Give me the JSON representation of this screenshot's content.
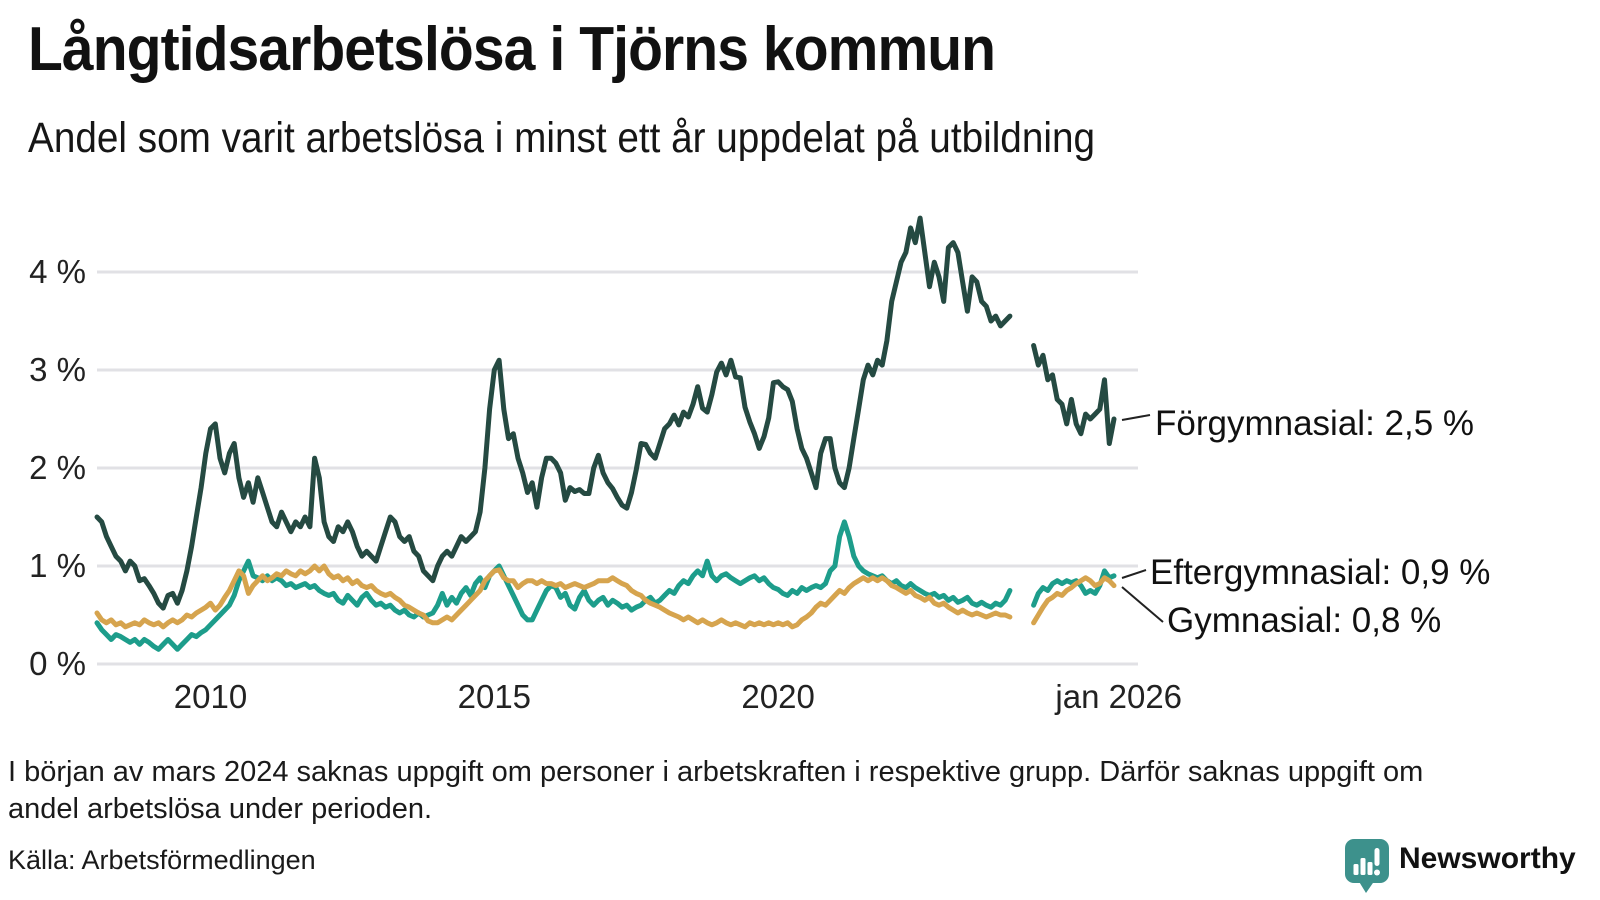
{
  "header": {
    "title": "Långtidsarbetslösa i Tjörns kommun",
    "subtitle": "Andel som varit arbetslösa i minst ett år uppdelat på utbildning"
  },
  "footer": {
    "footnote_line1": "I början av mars 2024 saknas uppgift om personer i arbetskraften i respektive grupp. Därför saknas uppgift om",
    "footnote_line2": "andel arbetslösa under perioden.",
    "source": "Källa: Arbetsförmedlingen",
    "logo_text": "Newsworthy",
    "logo_color": "#2d8a87",
    "logo_icon_color": "#3d918c"
  },
  "chart_data": {
    "type": "line",
    "frequency": "monthly",
    "x_start": "2008-01",
    "x_end": "2025-12",
    "data_gap": "2024-03 to 2024-06 (no data)",
    "grid": "horizontal only",
    "x_ticks": [
      {
        "label": "2010",
        "month_index": 24
      },
      {
        "label": "2015",
        "month_index": 84
      },
      {
        "label": "2020",
        "month_index": 144
      },
      {
        "label": "jan 2026",
        "month_index": 216
      }
    ],
    "y_ticks": [
      {
        "label": "0 %",
        "value": 0
      },
      {
        "label": "1 %",
        "value": 1
      },
      {
        "label": "2 %",
        "value": 2
      },
      {
        "label": "3 %",
        "value": 3
      },
      {
        "label": "4 %",
        "value": 4
      }
    ],
    "ylim": [
      0,
      4.75
    ],
    "series": [
      {
        "name": "Eftergymnasial",
        "end_label": "Eftergymnasial: 0,9 %",
        "end_value": "0,9 %",
        "color": "#1d9d8b",
        "values": [
          0.42,
          0.35,
          0.3,
          0.25,
          0.3,
          0.28,
          0.25,
          0.22,
          0.25,
          0.2,
          0.25,
          0.22,
          0.18,
          0.15,
          0.2,
          0.25,
          0.2,
          0.15,
          0.2,
          0.25,
          0.3,
          0.28,
          0.32,
          0.35,
          0.4,
          0.45,
          0.5,
          0.55,
          0.6,
          0.7,
          0.85,
          0.95,
          1.05,
          0.9,
          0.88,
          0.85,
          0.9,
          0.85,
          0.88,
          0.85,
          0.8,
          0.82,
          0.78,
          0.8,
          0.82,
          0.78,
          0.8,
          0.75,
          0.72,
          0.7,
          0.72,
          0.65,
          0.62,
          0.7,
          0.65,
          0.6,
          0.68,
          0.72,
          0.65,
          0.6,
          0.62,
          0.58,
          0.6,
          0.55,
          0.52,
          0.55,
          0.5,
          0.48,
          0.52,
          0.48,
          0.5,
          0.52,
          0.6,
          0.72,
          0.6,
          0.68,
          0.62,
          0.72,
          0.78,
          0.7,
          0.82,
          0.88,
          0.78,
          0.9,
          0.95,
          1.0,
          0.9,
          0.8,
          0.7,
          0.6,
          0.5,
          0.45,
          0.45,
          0.55,
          0.65,
          0.75,
          0.8,
          0.78,
          0.68,
          0.72,
          0.6,
          0.56,
          0.68,
          0.75,
          0.65,
          0.6,
          0.65,
          0.68,
          0.6,
          0.65,
          0.62,
          0.58,
          0.6,
          0.55,
          0.58,
          0.6,
          0.65,
          0.68,
          0.62,
          0.65,
          0.7,
          0.75,
          0.72,
          0.8,
          0.85,
          0.82,
          0.9,
          0.95,
          0.9,
          1.05,
          0.9,
          0.85,
          0.9,
          0.92,
          0.88,
          0.85,
          0.82,
          0.85,
          0.88,
          0.9,
          0.85,
          0.88,
          0.82,
          0.78,
          0.76,
          0.72,
          0.7,
          0.75,
          0.72,
          0.78,
          0.75,
          0.78,
          0.8,
          0.78,
          0.82,
          0.95,
          1.0,
          1.3,
          1.45,
          1.3,
          1.1,
          1.0,
          0.95,
          0.92,
          0.9,
          0.88,
          0.9,
          0.85,
          0.82,
          0.85,
          0.8,
          0.78,
          0.82,
          0.78,
          0.75,
          0.72,
          0.7,
          0.72,
          0.68,
          0.7,
          0.65,
          0.68,
          0.63,
          0.65,
          0.68,
          0.62,
          0.6,
          0.63,
          0.6,
          0.58,
          0.62,
          0.6,
          0.65,
          0.75,
          null,
          null,
          null,
          null,
          0.6,
          0.72,
          0.78,
          0.75,
          0.82,
          0.85,
          0.82,
          0.85,
          0.83,
          0.85,
          0.8,
          0.72,
          0.75,
          0.72,
          0.8,
          0.95,
          0.88,
          0.9
        ]
      },
      {
        "name": "Gymnasial",
        "end_label": "Gymnasial: 0,8 %",
        "end_value": "0,8 %",
        "color": "#d6a44e",
        "values": [
          0.52,
          0.45,
          0.42,
          0.45,
          0.4,
          0.42,
          0.38,
          0.4,
          0.42,
          0.4,
          0.45,
          0.42,
          0.4,
          0.42,
          0.38,
          0.42,
          0.45,
          0.42,
          0.45,
          0.5,
          0.48,
          0.52,
          0.55,
          0.58,
          0.62,
          0.55,
          0.6,
          0.68,
          0.75,
          0.85,
          0.95,
          0.9,
          0.72,
          0.8,
          0.85,
          0.9,
          0.85,
          0.88,
          0.92,
          0.9,
          0.95,
          0.92,
          0.9,
          0.95,
          0.92,
          0.95,
          1.0,
          0.95,
          1.0,
          0.92,
          0.88,
          0.9,
          0.85,
          0.88,
          0.82,
          0.85,
          0.8,
          0.78,
          0.8,
          0.75,
          0.72,
          0.7,
          0.72,
          0.68,
          0.65,
          0.6,
          0.58,
          0.55,
          0.52,
          0.5,
          0.44,
          0.42,
          0.42,
          0.45,
          0.48,
          0.45,
          0.5,
          0.55,
          0.6,
          0.65,
          0.7,
          0.75,
          0.85,
          0.9,
          0.95,
          0.96,
          0.88,
          0.85,
          0.85,
          0.78,
          0.82,
          0.85,
          0.85,
          0.82,
          0.85,
          0.82,
          0.82,
          0.8,
          0.82,
          0.78,
          0.8,
          0.82,
          0.8,
          0.78,
          0.8,
          0.82,
          0.85,
          0.85,
          0.85,
          0.88,
          0.85,
          0.82,
          0.8,
          0.75,
          0.72,
          0.7,
          0.65,
          0.62,
          0.6,
          0.58,
          0.55,
          0.52,
          0.5,
          0.48,
          0.45,
          0.48,
          0.45,
          0.42,
          0.45,
          0.42,
          0.4,
          0.42,
          0.45,
          0.42,
          0.4,
          0.42,
          0.4,
          0.38,
          0.42,
          0.4,
          0.42,
          0.4,
          0.42,
          0.4,
          0.42,
          0.4,
          0.42,
          0.38,
          0.4,
          0.45,
          0.48,
          0.52,
          0.58,
          0.62,
          0.6,
          0.65,
          0.7,
          0.75,
          0.72,
          0.78,
          0.82,
          0.85,
          0.88,
          0.85,
          0.88,
          0.85,
          0.88,
          0.85,
          0.8,
          0.78,
          0.75,
          0.72,
          0.75,
          0.7,
          0.68,
          0.65,
          0.68,
          0.62,
          0.6,
          0.62,
          0.58,
          0.55,
          0.52,
          0.55,
          0.52,
          0.5,
          0.52,
          0.5,
          0.48,
          0.5,
          0.52,
          0.5,
          0.5,
          0.48,
          null,
          null,
          null,
          null,
          0.42,
          0.5,
          0.58,
          0.65,
          0.68,
          0.72,
          0.7,
          0.75,
          0.78,
          0.82,
          0.85,
          0.88,
          0.85,
          0.8,
          0.82,
          0.88,
          0.85,
          0.8
        ]
      },
      {
        "name": "Förgymnasial",
        "end_label": "Förgymnasial: 2,5 %",
        "end_value": "2,5 %",
        "color": "#254a42",
        "values": [
          1.5,
          1.45,
          1.3,
          1.2,
          1.1,
          1.05,
          0.95,
          1.05,
          1.0,
          0.85,
          0.87,
          0.8,
          0.72,
          0.62,
          0.57,
          0.7,
          0.72,
          0.62,
          0.75,
          0.95,
          1.2,
          1.5,
          1.8,
          2.15,
          2.4,
          2.45,
          2.1,
          1.95,
          2.15,
          2.25,
          1.9,
          1.7,
          1.85,
          1.65,
          1.9,
          1.75,
          1.6,
          1.45,
          1.4,
          1.55,
          1.45,
          1.35,
          1.45,
          1.4,
          1.5,
          1.4,
          2.1,
          1.9,
          1.45,
          1.3,
          1.25,
          1.4,
          1.35,
          1.45,
          1.35,
          1.2,
          1.1,
          1.15,
          1.1,
          1.05,
          1.2,
          1.35,
          1.5,
          1.45,
          1.3,
          1.25,
          1.3,
          1.15,
          1.1,
          0.95,
          0.9,
          0.85,
          1.0,
          1.1,
          1.15,
          1.1,
          1.2,
          1.3,
          1.25,
          1.3,
          1.35,
          1.55,
          2.0,
          2.6,
          3.0,
          3.1,
          2.6,
          2.3,
          2.35,
          2.1,
          1.95,
          1.75,
          1.85,
          1.6,
          1.9,
          2.1,
          2.1,
          2.05,
          1.95,
          1.67,
          1.8,
          1.76,
          1.78,
          1.74,
          1.74,
          2.0,
          2.13,
          1.95,
          1.85,
          1.79,
          1.7,
          1.62,
          1.59,
          1.75,
          1.98,
          2.25,
          2.24,
          2.15,
          2.1,
          2.25,
          2.4,
          2.45,
          2.54,
          2.44,
          2.57,
          2.52,
          2.65,
          2.83,
          2.61,
          2.57,
          2.75,
          2.98,
          3.07,
          2.95,
          3.1,
          2.93,
          2.92,
          2.62,
          2.47,
          2.35,
          2.2,
          2.32,
          2.51,
          2.87,
          2.88,
          2.83,
          2.8,
          2.68,
          2.4,
          2.2,
          2.1,
          1.95,
          1.8,
          2.15,
          2.3,
          2.3,
          2.0,
          1.85,
          1.8,
          2.0,
          2.3,
          2.6,
          2.9,
          3.05,
          2.95,
          3.1,
          3.05,
          3.3,
          3.7,
          3.9,
          4.1,
          4.2,
          4.45,
          4.3,
          4.55,
          4.2,
          3.85,
          4.1,
          3.95,
          3.7,
          4.25,
          4.3,
          4.2,
          3.9,
          3.6,
          3.95,
          3.9,
          3.7,
          3.65,
          3.5,
          3.55,
          3.45,
          3.5,
          3.55,
          null,
          null,
          null,
          null,
          3.25,
          3.05,
          3.15,
          2.9,
          2.95,
          2.7,
          2.65,
          2.45,
          2.7,
          2.45,
          2.35,
          2.55,
          2.5,
          2.55,
          2.6,
          2.9,
          2.25,
          2.5
        ]
      }
    ]
  }
}
